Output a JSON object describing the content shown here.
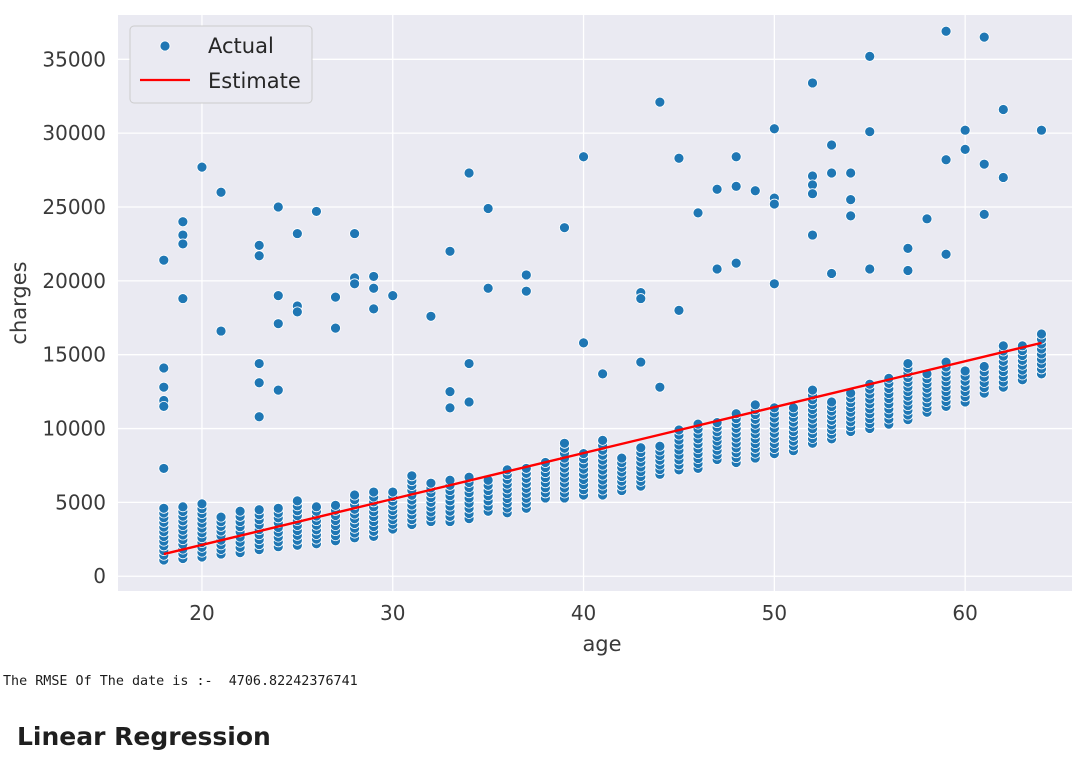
{
  "chart_data": {
    "type": "scatter",
    "xlabel": "age",
    "ylabel": "charges",
    "xlim": [
      15.6,
      65.6
    ],
    "ylim": [
      -1000,
      38000
    ],
    "xticks": [
      20,
      30,
      40,
      50,
      60
    ],
    "yticks": [
      0,
      5000,
      10000,
      15000,
      20000,
      25000,
      30000,
      35000
    ],
    "grid": true,
    "legend": {
      "placement": "top-left",
      "entries": [
        "Actual",
        "Estimate"
      ]
    },
    "colors": {
      "actual": "#1f77b4",
      "estimate": "#ff0000",
      "plot_bg": "#eaeaf2",
      "grid": "#ffffff"
    },
    "estimate_line": {
      "name": "Estimate",
      "x": [
        18,
        64
      ],
      "y": [
        1500,
        15800
      ]
    },
    "outliers": {
      "name": "Actual",
      "points": [
        [
          18,
          21400
        ],
        [
          18,
          14100
        ],
        [
          18,
          12800
        ],
        [
          18,
          11900
        ],
        [
          18,
          11500
        ],
        [
          18,
          7300
        ],
        [
          19,
          24000
        ],
        [
          19,
          23100
        ],
        [
          19,
          22500
        ],
        [
          19,
          18800
        ],
        [
          20,
          27700
        ],
        [
          21,
          26000
        ],
        [
          21,
          16600
        ],
        [
          23,
          22400
        ],
        [
          23,
          21700
        ],
        [
          23,
          14400
        ],
        [
          23,
          13100
        ],
        [
          23,
          10800
        ],
        [
          24,
          25000
        ],
        [
          24,
          19000
        ],
        [
          24,
          17100
        ],
        [
          24,
          12600
        ],
        [
          25,
          23200
        ],
        [
          25,
          18300
        ],
        [
          25,
          17900
        ],
        [
          26,
          24700
        ],
        [
          27,
          18900
        ],
        [
          27,
          16800
        ],
        [
          28,
          23200
        ],
        [
          28,
          20200
        ],
        [
          28,
          19800
        ],
        [
          29,
          20300
        ],
        [
          29,
          19500
        ],
        [
          29,
          18100
        ],
        [
          30,
          19000
        ],
        [
          32,
          17600
        ],
        [
          33,
          22000
        ],
        [
          33,
          12500
        ],
        [
          33,
          11400
        ],
        [
          34,
          27300
        ],
        [
          34,
          14400
        ],
        [
          34,
          11800
        ],
        [
          35,
          24900
        ],
        [
          35,
          19500
        ],
        [
          37,
          20400
        ],
        [
          37,
          19300
        ],
        [
          39,
          23600
        ],
        [
          40,
          28400
        ],
        [
          40,
          15800
        ],
        [
          41,
          13700
        ],
        [
          43,
          19200
        ],
        [
          43,
          18800
        ],
        [
          43,
          14500
        ],
        [
          44,
          32100
        ],
        [
          44,
          12800
        ],
        [
          45,
          28300
        ],
        [
          45,
          18000
        ],
        [
          46,
          24600
        ],
        [
          47,
          26200
        ],
        [
          47,
          20800
        ],
        [
          48,
          28400
        ],
        [
          48,
          26400
        ],
        [
          48,
          21200
        ],
        [
          49,
          26100
        ],
        [
          50,
          30300
        ],
        [
          50,
          25600
        ],
        [
          50,
          25200
        ],
        [
          50,
          19800
        ],
        [
          52,
          33400
        ],
        [
          52,
          27100
        ],
        [
          52,
          26500
        ],
        [
          52,
          25900
        ],
        [
          52,
          23100
        ],
        [
          53,
          29200
        ],
        [
          53,
          27300
        ],
        [
          53,
          20500
        ],
        [
          54,
          27300
        ],
        [
          54,
          25500
        ],
        [
          54,
          24400
        ],
        [
          55,
          35200
        ],
        [
          55,
          30100
        ],
        [
          55,
          20800
        ],
        [
          57,
          22200
        ],
        [
          57,
          20700
        ],
        [
          58,
          24200
        ],
        [
          59,
          36900
        ],
        [
          59,
          28200
        ],
        [
          59,
          21800
        ],
        [
          60,
          30200
        ],
        [
          60,
          28900
        ],
        [
          61,
          36500
        ],
        [
          61,
          27900
        ],
        [
          61,
          24500
        ],
        [
          62,
          31600
        ],
        [
          62,
          27000
        ],
        [
          64,
          30200
        ]
      ]
    },
    "cluster": {
      "name": "Actual",
      "ages": [
        18,
        19,
        20,
        21,
        22,
        23,
        24,
        25,
        26,
        27,
        28,
        29,
        30,
        31,
        32,
        33,
        34,
        35,
        36,
        37,
        38,
        39,
        40,
        41,
        42,
        43,
        44,
        45,
        46,
        47,
        48,
        49,
        50,
        51,
        52,
        53,
        54,
        55,
        56,
        57,
        58,
        59,
        60,
        61,
        62,
        63,
        64
      ],
      "min": [
        1100,
        1200,
        1300,
        1500,
        1600,
        1800,
        2000,
        2100,
        2200,
        2400,
        2600,
        2700,
        3200,
        3500,
        3700,
        3700,
        3900,
        4400,
        4300,
        4600,
        5300,
        5300,
        5500,
        5500,
        5800,
        6100,
        6900,
        7200,
        7300,
        7900,
        7700,
        8000,
        8300,
        8500,
        9000,
        9300,
        9800,
        10000,
        10300,
        10600,
        11100,
        11500,
        11800,
        12400,
        12800,
        13300,
        13700
      ],
      "max": [
        4600,
        4700,
        4900,
        4000,
        4400,
        4500,
        4600,
        5100,
        4700,
        4800,
        5500,
        5700,
        5700,
        6800,
        6300,
        6500,
        6700,
        6500,
        7200,
        7300,
        7700,
        9000,
        8300,
        9200,
        8000,
        8700,
        8800,
        9900,
        10300,
        10400,
        11000,
        11600,
        11400,
        11400,
        12600,
        11800,
        12400,
        13000,
        13400,
        14400,
        13700,
        14500,
        13900,
        14200,
        15600,
        15600,
        16400
      ]
    }
  },
  "output_text": {
    "label": "The RMSE Of The date is :-",
    "value": "4706.82242376741"
  },
  "section_heading": "Linear Regression"
}
